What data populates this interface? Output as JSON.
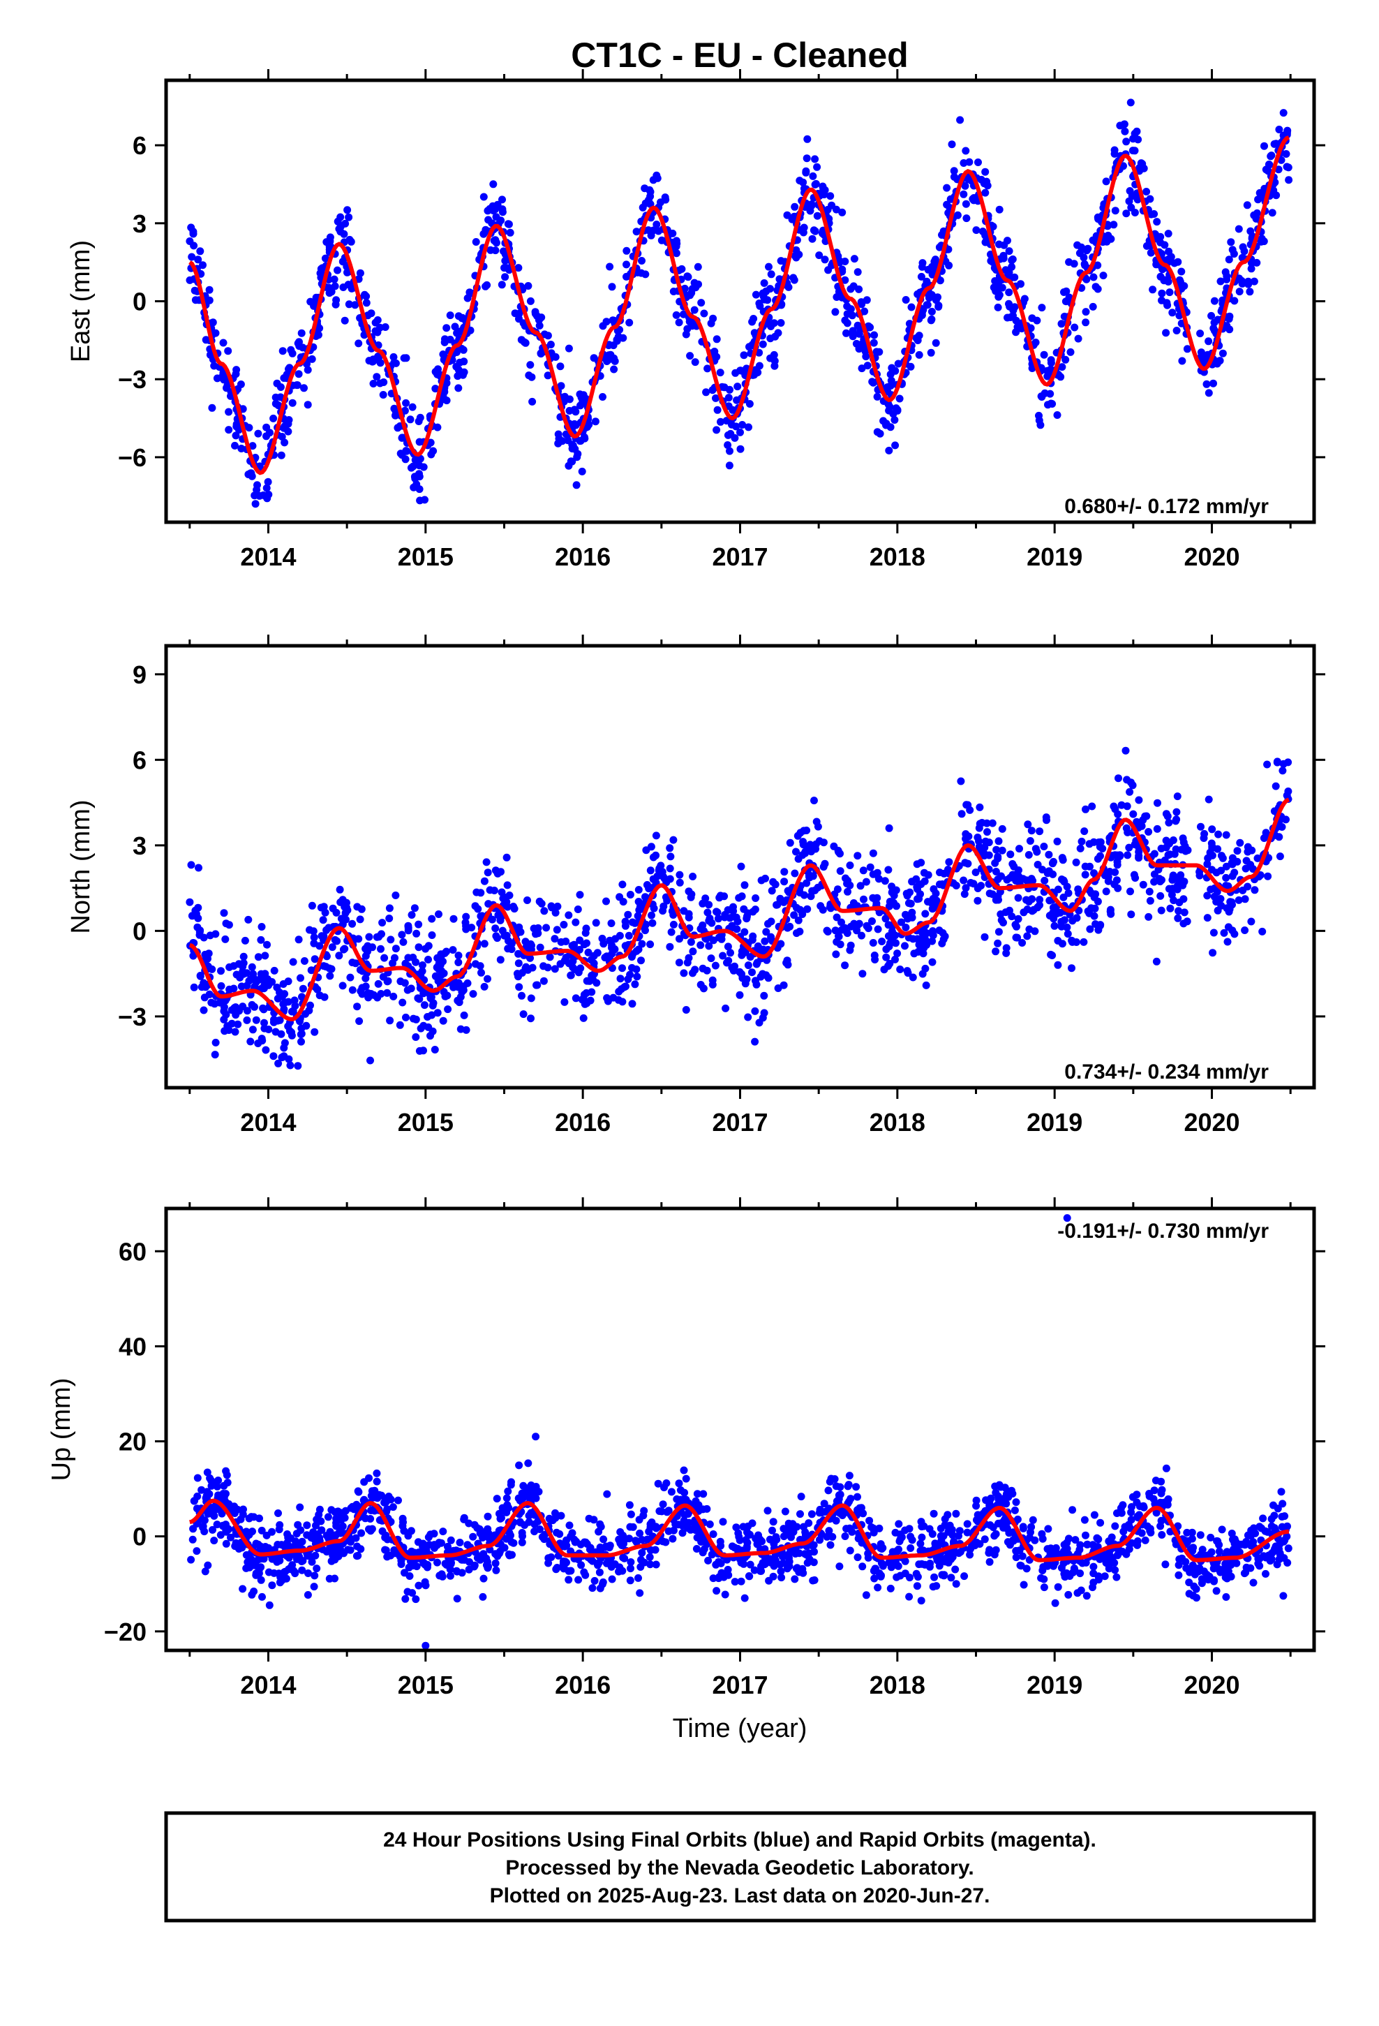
{
  "title": "CT1C  - EU - Cleaned",
  "colors": {
    "points": "#0000ff",
    "fit": "#ff0000",
    "frame": "#000000"
  },
  "x_tick_labels": [
    "2014",
    "2015",
    "2016",
    "2017",
    "2018",
    "2019",
    "2020"
  ],
  "xlabel": "Time (year)",
  "footer": {
    "line1": "24 Hour Positions Using Final Orbits (blue) and Rapid Orbits (magenta).",
    "line2": "Processed by the Nevada Geodetic Laboratory.",
    "line3": "Plotted on 2025-Aug-23. Last data on 2020-Jun-27."
  },
  "chart_data": [
    {
      "type": "scatter",
      "panel": "east",
      "ylabel": "East (mm)",
      "rate_label": "0.680+/- 0.172 mm/yr",
      "xlim": [
        2013.35,
        2020.65
      ],
      "ylim": [
        -8.5,
        8.5
      ],
      "yticks": [
        -6,
        -3,
        0,
        3,
        6
      ],
      "yticklabels": [
        "−6",
        "−3",
        "0",
        "3",
        "6"
      ],
      "xticks": [
        2014,
        2015,
        2016,
        2017,
        2018,
        2019,
        2020
      ],
      "data_start": 2013.5,
      "data_end": 2020.49,
      "trend_mm_per_yr": 0.68,
      "fit_curve": {
        "x": [
          2013.5,
          2013.7,
          2013.95,
          2014.2,
          2014.45,
          2014.7,
          2014.95,
          2015.2,
          2015.45,
          2015.7,
          2015.95,
          2016.2,
          2016.45,
          2016.7,
          2016.95,
          2017.2,
          2017.45,
          2017.7,
          2017.95,
          2018.2,
          2018.45,
          2018.7,
          2018.95,
          2019.2,
          2019.45,
          2019.7,
          2019.95,
          2020.2,
          2020.49
        ],
        "y": [
          1.5,
          -2.4,
          -6.6,
          -2.4,
          2.2,
          -1.9,
          -5.9,
          -1.7,
          2.9,
          -1.2,
          -5.2,
          -1.0,
          3.6,
          -0.6,
          -4.5,
          -0.3,
          4.3,
          0.1,
          -3.8,
          0.5,
          5.0,
          0.8,
          -3.2,
          1.1,
          5.6,
          1.4,
          -2.6,
          1.5,
          6.3
        ]
      },
      "scatter_sigma": 0.9
    },
    {
      "type": "scatter",
      "panel": "north",
      "ylabel": "North (mm)",
      "rate_label": "0.734+/- 0.234 mm/yr",
      "xlim": [
        2013.35,
        2020.65
      ],
      "ylim": [
        -5.5,
        10.0
      ],
      "yticks": [
        -3,
        0,
        3,
        6,
        9
      ],
      "yticklabels": [
        "−3",
        "0",
        "3",
        "6",
        "9"
      ],
      "xticks": [
        2014,
        2015,
        2016,
        2017,
        2018,
        2019,
        2020
      ],
      "data_start": 2013.5,
      "data_end": 2020.49,
      "trend_mm_per_yr": 0.734,
      "fit_curve": {
        "x": [
          2013.5,
          2013.7,
          2013.9,
          2014.15,
          2014.45,
          2014.65,
          2014.85,
          2015.05,
          2015.2,
          2015.45,
          2015.65,
          2015.9,
          2016.1,
          2016.25,
          2016.5,
          2016.7,
          2016.9,
          2017.15,
          2017.45,
          2017.65,
          2017.9,
          2018.05,
          2018.2,
          2018.45,
          2018.65,
          2018.9,
          2019.1,
          2019.25,
          2019.45,
          2019.65,
          2019.9,
          2020.1,
          2020.25,
          2020.49
        ],
        "y": [
          -0.5,
          -2.3,
          -2.1,
          -3.1,
          0.1,
          -1.4,
          -1.3,
          -2.1,
          -1.6,
          0.9,
          -0.8,
          -0.7,
          -1.4,
          -0.9,
          1.6,
          -0.2,
          0.0,
          -0.9,
          2.3,
          0.7,
          0.8,
          -0.1,
          0.3,
          3.0,
          1.5,
          1.6,
          0.7,
          1.8,
          3.9,
          2.3,
          2.3,
          1.4,
          1.9,
          4.6
        ]
      },
      "scatter_sigma": 1.05
    },
    {
      "type": "scatter",
      "panel": "up",
      "ylabel": "Up (mm)",
      "rate_label": "-0.191+/- 0.730 mm/yr",
      "xlabel": "Time (year)",
      "xlim": [
        2013.35,
        2020.65
      ],
      "ylim": [
        -24,
        69
      ],
      "yticks": [
        -20,
        0,
        20,
        40,
        60
      ],
      "yticklabels": [
        "−20",
        "0",
        "20",
        "40",
        "60"
      ],
      "xticks": [
        2014,
        2015,
        2016,
        2017,
        2018,
        2019,
        2020
      ],
      "data_start": 2013.5,
      "data_end": 2020.49,
      "trend_mm_per_yr": -0.191,
      "fit_curve": {
        "x": [
          2013.5,
          2013.65,
          2013.95,
          2014.2,
          2014.45,
          2014.65,
          2014.9,
          2015.15,
          2015.4,
          2015.65,
          2015.9,
          2016.15,
          2016.4,
          2016.65,
          2016.9,
          2017.15,
          2017.4,
          2017.65,
          2017.9,
          2018.15,
          2018.4,
          2018.65,
          2018.9,
          2019.15,
          2019.4,
          2019.65,
          2019.9,
          2020.15,
          2020.49
        ],
        "y": [
          3,
          7.5,
          -3.8,
          -3,
          -1,
          7,
          -4.5,
          -4,
          -2,
          7,
          -4,
          -4,
          -2,
          6.5,
          -4,
          -3.5,
          -1.5,
          6.5,
          -4.5,
          -4,
          -2,
          6,
          -5,
          -4.5,
          -2,
          6,
          -5,
          -4.5,
          1
        ]
      },
      "scatter_sigma": 3.8,
      "outliers": [
        {
          "x": 2019.08,
          "y": 67
        },
        {
          "x": 2015.0,
          "y": -23
        },
        {
          "x": 2015.7,
          "y": 21
        }
      ]
    }
  ]
}
